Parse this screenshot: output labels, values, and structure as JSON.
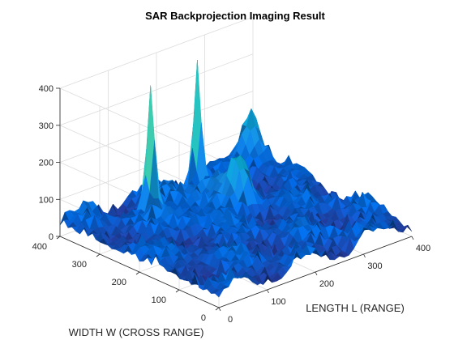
{
  "chart_data": {
    "type": "surface",
    "title": "SAR Backprojection Imaging Result",
    "xlabel": "LENGTH L (RANGE)",
    "ylabel": "WIDTH W (CROSS RANGE)",
    "zlabel": "",
    "xlim": [
      0,
      400
    ],
    "ylim": [
      0,
      400
    ],
    "zlim": [
      0,
      400
    ],
    "xticks": [
      "0",
      "100",
      "200",
      "300",
      "400"
    ],
    "yticks": [
      "0",
      "100",
      "200",
      "300",
      "400"
    ],
    "zticks": [
      "0",
      "100",
      "200",
      "300",
      "400"
    ],
    "grid": true,
    "colormap": "parula",
    "peaks": [
      {
        "x": 130,
        "y": 330,
        "z": 330
      },
      {
        "x": 260,
        "y": 370,
        "z": 345
      },
      {
        "x": 250,
        "y": 250,
        "z": 120
      },
      {
        "x": 380,
        "y": 380,
        "z": 130
      }
    ]
  }
}
